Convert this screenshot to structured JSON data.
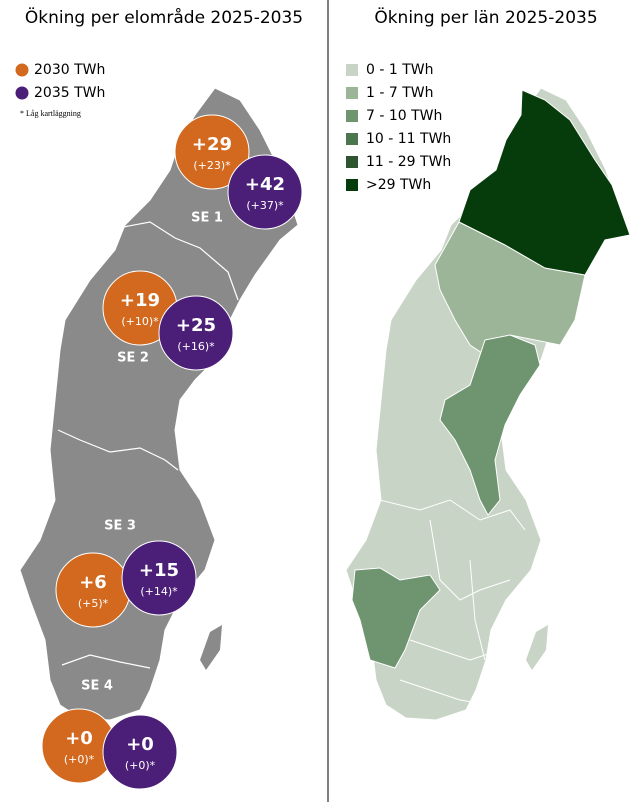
{
  "left_panel": {
    "title": "Ökning per elområde 2025-2035",
    "legend": [
      {
        "label": "2030 TWh",
        "color": "#d2691e"
      },
      {
        "label": "2035 TWh",
        "color": "#4b1e78"
      }
    ],
    "note": "* Låg kartläggning",
    "regions": [
      {
        "label": "SE 1",
        "bubbles": [
          {
            "value": "+29",
            "detail": "(+23)*"
          },
          {
            "value": "+42",
            "detail": "(+37)*"
          }
        ]
      },
      {
        "label": "SE 2",
        "bubbles": [
          {
            "value": "+19",
            "detail": "(+10)*"
          },
          {
            "value": "+25",
            "detail": "(+16)*"
          }
        ]
      },
      {
        "label": "SE 3",
        "bubbles": [
          {
            "value": "+6",
            "detail": "(+5)*"
          },
          {
            "value": "+15",
            "detail": "(+14)*"
          }
        ]
      },
      {
        "label": "SE 4",
        "bubbles": [
          {
            "value": "+0",
            "detail": "(+0)*"
          },
          {
            "value": "+0",
            "detail": "(+0)*"
          }
        ]
      }
    ]
  },
  "right_panel": {
    "title": "Ökning per län 2025-2035",
    "legend": [
      {
        "label": "0 - 1 TWh",
        "color": "#c8d4c5"
      },
      {
        "label": "1 - 7 TWh",
        "color": "#9cb598"
      },
      {
        "label": "7 - 10 TWh",
        "color": "#6e9470"
      },
      {
        "label": "10 - 11 TWh",
        "color": "#4c7650"
      },
      {
        "label": "11 - 29 TWh",
        "color": "#2d5530"
      },
      {
        "label": ">29 TWh",
        "color": "#063b0b"
      }
    ]
  }
}
